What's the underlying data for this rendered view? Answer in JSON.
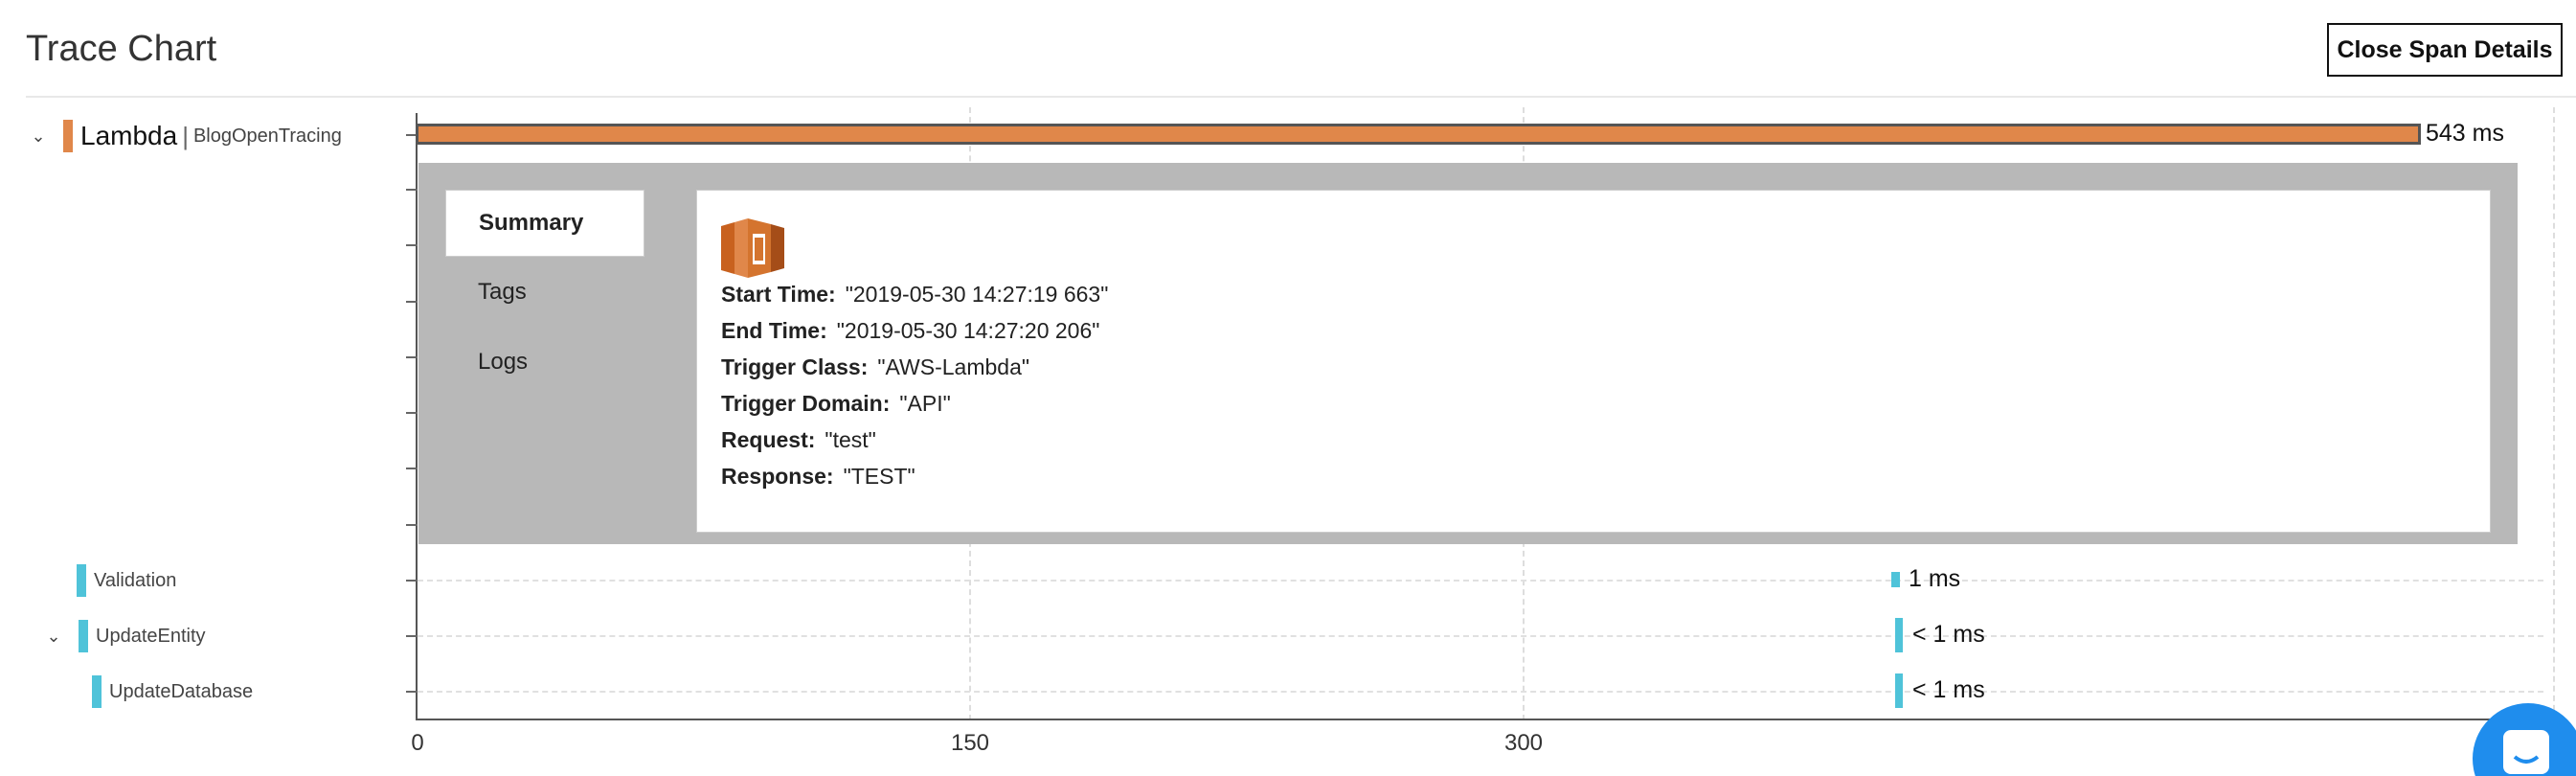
{
  "header": {
    "title": "Trace Chart",
    "close_button": "Close Span Details"
  },
  "colors": {
    "lambda": "#e0874a",
    "child": "#4fc3d9",
    "panel": "#b8b8b8"
  },
  "tree": {
    "root": {
      "service": "Lambda",
      "operation": "BlogOpenTracing",
      "icon": "chevron-down-icon"
    },
    "children": [
      {
        "label": "Validation"
      },
      {
        "label": "UpdateEntity",
        "icon": "chevron-down-icon"
      },
      {
        "label": "UpdateDatabase"
      }
    ]
  },
  "chart_data": {
    "type": "bar",
    "x_ticks": [
      "0",
      "150",
      "300"
    ],
    "spans": [
      {
        "name": "Lambda",
        "duration_label": "543 ms"
      },
      {
        "name": "Validation",
        "duration_label": "1 ms"
      },
      {
        "name": "UpdateEntity",
        "duration_label": "< 1 ms"
      },
      {
        "name": "UpdateDatabase",
        "duration_label": "< 1 ms"
      }
    ]
  },
  "details": {
    "tabs": [
      "Summary",
      "Tags",
      "Logs"
    ],
    "active_tab": "Summary",
    "icon": "aws-lambda-icon",
    "fields": [
      {
        "key": "Start Time:",
        "value": "\"2019-05-30 14:27:19 663\""
      },
      {
        "key": "End Time:",
        "value": "\"2019-05-30 14:27:20 206\""
      },
      {
        "key": "Trigger Class:",
        "value": "\"AWS-Lambda\""
      },
      {
        "key": "Trigger Domain:",
        "value": "\"API\""
      },
      {
        "key": "Request:",
        "value": "\"test\""
      },
      {
        "key": "Response:",
        "value": "\"TEST\""
      }
    ]
  }
}
